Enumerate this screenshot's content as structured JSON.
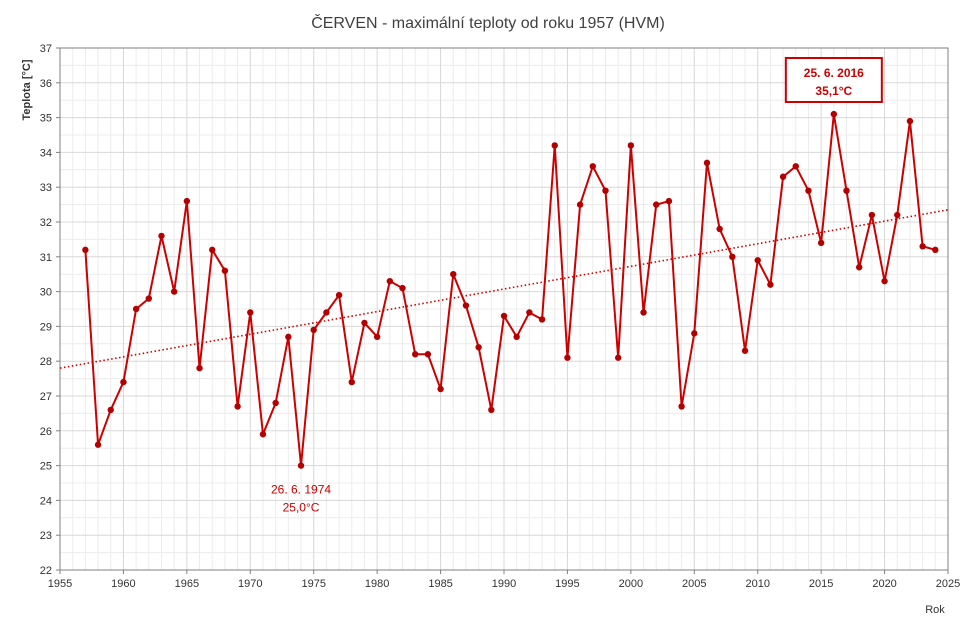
{
  "chart_data": {
    "type": "line",
    "title": "ČERVEN - maximální teploty od roku 1957 (HVM)",
    "xlabel": "Rok",
    "ylabel": "Teplota [°C]",
    "xlim": [
      1955,
      2025
    ],
    "ylim": [
      22,
      37
    ],
    "x_ticks": [
      1955,
      1960,
      1965,
      1970,
      1975,
      1980,
      1985,
      1990,
      1995,
      2000,
      2005,
      2010,
      2015,
      2020,
      2025
    ],
    "y_ticks": [
      22,
      23,
      24,
      25,
      26,
      27,
      28,
      29,
      30,
      31,
      32,
      33,
      34,
      35,
      36,
      37
    ],
    "grid": true,
    "series": [
      {
        "color": "#cc0000",
        "x": [
          1957,
          1958,
          1959,
          1960,
          1961,
          1962,
          1963,
          1964,
          1965,
          1966,
          1967,
          1968,
          1969,
          1970,
          1971,
          1972,
          1973,
          1974,
          1975,
          1976,
          1977,
          1978,
          1979,
          1980,
          1981,
          1982,
          1983,
          1984,
          1985,
          1986,
          1987,
          1988,
          1989,
          1990,
          1991,
          1992,
          1993,
          1994,
          1995,
          1996,
          1997,
          1998,
          1999,
          2000,
          2001,
          2002,
          2003,
          2004,
          2005,
          2006,
          2007,
          2008,
          2009,
          2010,
          2011,
          2012,
          2013,
          2014,
          2015,
          2016,
          2017,
          2018,
          2019,
          2020,
          2021,
          2022,
          2023,
          2024
        ],
        "values": [
          31.2,
          25.6,
          26.6,
          27.4,
          29.5,
          29.8,
          31.6,
          30.0,
          32.6,
          27.8,
          31.2,
          30.6,
          26.7,
          29.4,
          25.9,
          26.8,
          28.7,
          25.0,
          28.9,
          29.4,
          29.9,
          27.4,
          29.1,
          28.7,
          30.3,
          30.1,
          28.2,
          28.2,
          27.2,
          30.5,
          29.6,
          28.4,
          26.6,
          29.3,
          28.7,
          29.4,
          29.2,
          34.2,
          28.1,
          32.5,
          33.6,
          32.9,
          28.1,
          34.2,
          29.4,
          32.5,
          32.6,
          26.7,
          28.8,
          33.7,
          31.8,
          31.0,
          28.3,
          30.9,
          30.2,
          33.3,
          33.6,
          32.9,
          31.4,
          35.1,
          32.9,
          30.7,
          32.2,
          30.3,
          32.2,
          34.9,
          31.3,
          31.2
        ]
      }
    ],
    "trendline": {
      "color": "#cc0000",
      "style": "dotted",
      "x": [
        1955,
        2025
      ],
      "values": [
        27.8,
        32.35
      ]
    },
    "annotations": [
      {
        "x": 2016,
        "y": 35.1,
        "date": "25. 6. 2016",
        "value": "35,1°C",
        "boxed": true
      },
      {
        "x": 1974,
        "y": 25.0,
        "date": "26. 6. 1974",
        "value": "25,0°C",
        "boxed": false
      }
    ]
  }
}
